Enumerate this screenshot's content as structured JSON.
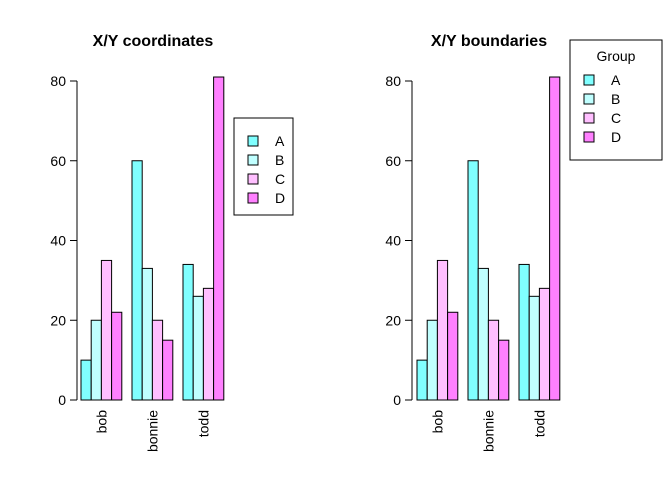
{
  "chart_data": [
    {
      "type": "bar",
      "title": "X/Y coordinates",
      "categories": [
        "bob",
        "bonnie",
        "todd"
      ],
      "series": [
        {
          "name": "A",
          "values": [
            10,
            60,
            34
          ]
        },
        {
          "name": "B",
          "values": [
            20,
            33,
            26
          ]
        },
        {
          "name": "C",
          "values": [
            35,
            20,
            28
          ]
        },
        {
          "name": "D",
          "values": [
            22,
            15,
            81
          ]
        }
      ],
      "yticks": [
        0,
        20,
        40,
        60,
        80
      ],
      "ylim": [
        0,
        82
      ],
      "legend": {
        "title": "",
        "entries": [
          "A",
          "B",
          "C",
          "D"
        ],
        "placement": "right"
      }
    },
    {
      "type": "bar",
      "title": "X/Y boundaries",
      "categories": [
        "bob",
        "bonnie",
        "todd"
      ],
      "series": [
        {
          "name": "A",
          "values": [
            10,
            60,
            34
          ]
        },
        {
          "name": "B",
          "values": [
            20,
            33,
            26
          ]
        },
        {
          "name": "C",
          "values": [
            35,
            20,
            28
          ]
        },
        {
          "name": "D",
          "values": [
            22,
            15,
            81
          ]
        }
      ],
      "yticks": [
        0,
        20,
        40,
        60,
        80
      ],
      "ylim": [
        0,
        82
      ],
      "legend": {
        "title": "Group",
        "entries": [
          "A",
          "B",
          "C",
          "D"
        ],
        "placement": "top-right"
      }
    }
  ],
  "colors": [
    "#80ffff",
    "#c0ffff",
    "#ffbfff",
    "#ff80ff"
  ]
}
